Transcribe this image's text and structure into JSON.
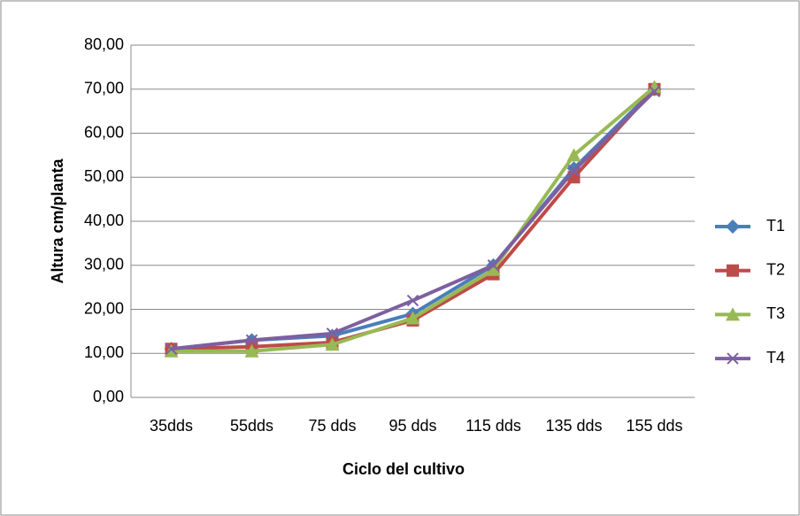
{
  "chart_data": {
    "type": "line",
    "y_label": "Altura cm/planta",
    "x_label": "Ciclo del cultivo",
    "categories": [
      "35dds",
      "55dds",
      "75 dds",
      "95 dds",
      "115 dds",
      "135 dds",
      "155 dds"
    ],
    "series": [
      {
        "name": "T1",
        "color": "#4a7ebb",
        "marker": "diamond",
        "values": [
          11,
          13,
          14,
          19,
          30,
          52,
          70
        ]
      },
      {
        "name": "T2",
        "color": "#be4b48",
        "marker": "square",
        "values": [
          11,
          11.5,
          12.5,
          17.5,
          28,
          50,
          70
        ]
      },
      {
        "name": "T3",
        "color": "#98b954",
        "marker": "triangle",
        "values": [
          10.5,
          10.5,
          12,
          18,
          29,
          55,
          70.5
        ]
      },
      {
        "name": "T4",
        "color": "#7d60a0",
        "marker": "x",
        "values": [
          11,
          13,
          14.5,
          22,
          30,
          51.5,
          69.5
        ]
      }
    ],
    "ylim": [
      0,
      80
    ],
    "yticks": [
      {
        "value": 0,
        "label": "0,00"
      },
      {
        "value": 10,
        "label": "10,00"
      },
      {
        "value": 20,
        "label": "20,00"
      },
      {
        "value": 30,
        "label": "30,00"
      },
      {
        "value": 40,
        "label": "40,00"
      },
      {
        "value": 50,
        "label": "50,00"
      },
      {
        "value": 60,
        "label": "60,00"
      },
      {
        "value": 70,
        "label": "70,00"
      },
      {
        "value": 80,
        "label": "80,00"
      }
    ],
    "grid": true,
    "legend": "right"
  }
}
